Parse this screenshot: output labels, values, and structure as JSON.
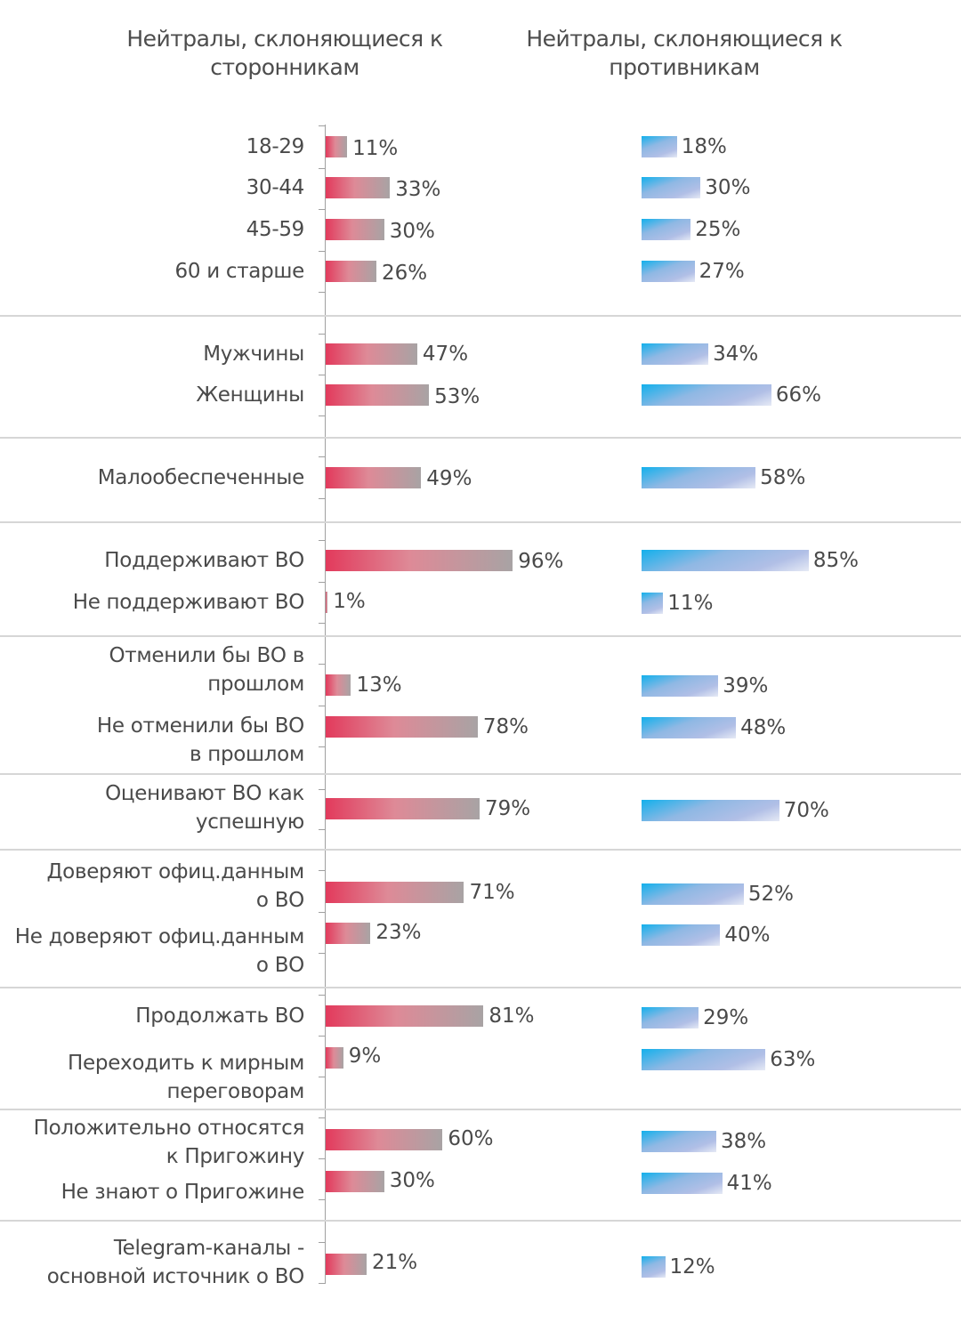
{
  "chart_data": {
    "type": "bar",
    "orientation": "horizontal",
    "series": [
      {
        "name": "Нейтралы, склоняющиеся к сторонникам",
        "color_start": "#e23a5c",
        "color_end": "#a8a3a4"
      },
      {
        "name": "Нейтралы, склоняющиеся к противникам",
        "color_start": "#12b0ec",
        "color_end": "#b1bfe6"
      }
    ],
    "value_unit": "%",
    "xlim": [
      0,
      100
    ],
    "groups": [
      {
        "rows": [
          {
            "label": "18-29",
            "left": 11,
            "right": 18,
            "left_label": "11%",
            "right_label": "18%"
          },
          {
            "label": "30-44",
            "left": 33,
            "right": 30,
            "left_label": "33%",
            "right_label": "30%"
          },
          {
            "label": "45-59",
            "left": 30,
            "right": 25,
            "left_label": "30%",
            "right_label": "25%"
          },
          {
            "label": "60 и старше",
            "left": 26,
            "right": 27,
            "left_label": "26%",
            "right_label": "27%"
          }
        ]
      },
      {
        "rows": [
          {
            "label": "Мужчины",
            "left": 47,
            "right": 34,
            "left_label": "47%",
            "right_label": "34%"
          },
          {
            "label": "Женщины",
            "left": 53,
            "right": 66,
            "left_label": "53%",
            "right_label": "66%"
          }
        ]
      },
      {
        "rows": [
          {
            "label": "Малообеспеченные",
            "left": 49,
            "right": 58,
            "left_label": "49%",
            "right_label": "58%"
          }
        ]
      },
      {
        "rows": [
          {
            "label": "Поддерживают ВО",
            "left": 96,
            "right": 85,
            "left_label": "96%",
            "right_label": "85%"
          },
          {
            "label": "Не поддерживают ВО",
            "left": 1,
            "right": 11,
            "left_label": "1%",
            "right_label": "11%"
          }
        ]
      },
      {
        "rows": [
          {
            "label": "Отменили бы ВО в прошлом",
            "left": 13,
            "right": 39,
            "left_label": "13%",
            "right_label": "39%"
          },
          {
            "label": "Не отменили бы ВО в прошлом",
            "left": 78,
            "right": 48,
            "left_label": "78%",
            "right_label": "48%"
          }
        ]
      },
      {
        "rows": [
          {
            "label": "Оценивают ВО как успешную",
            "left": 79,
            "right": 70,
            "left_label": "79%",
            "right_label": "70%"
          }
        ]
      },
      {
        "rows": [
          {
            "label": "Доверяют офиц.данным о ВО",
            "left": 71,
            "right": 52,
            "left_label": "71%",
            "right_label": "52%"
          },
          {
            "label": "Не доверяют офиц.данным о ВО",
            "left": 23,
            "right": 40,
            "left_label": "23%",
            "right_label": "40%"
          }
        ]
      },
      {
        "rows": [
          {
            "label": "Продолжать ВО",
            "left": 81,
            "right": 29,
            "left_label": "81%",
            "right_label": "29%"
          },
          {
            "label": "Переходить к мирным переговорам",
            "left": 9,
            "right": 63,
            "left_label": "9%",
            "right_label": "63%"
          }
        ]
      },
      {
        "rows": [
          {
            "label": "Положительно относятся к Пригожину",
            "left": 60,
            "right": 38,
            "left_label": "60%",
            "right_label": "38%"
          },
          {
            "label": "Не знают о Пригожине",
            "left": 30,
            "right": 41,
            "left_label": "30%",
            "right_label": "41%"
          }
        ]
      },
      {
        "rows": [
          {
            "label": "Telegram-каналы - основной источник о ВО",
            "left": 21,
            "right": 12,
            "left_label": "21%",
            "right_label": "12%"
          }
        ]
      }
    ]
  },
  "titles": {
    "left_line1": "Нейтралы, склоняющиеся к",
    "left_line2": "сторонникам",
    "right_line1": "Нейтралы, склоняющиеся к",
    "right_line2": "противникам"
  },
  "label_lines": [
    [
      "18-29"
    ],
    [
      "30-44"
    ],
    [
      "45-59"
    ],
    [
      "60 и старше"
    ],
    [
      "Мужчины"
    ],
    [
      "Женщины"
    ],
    [
      "Малообеспеченные"
    ],
    [
      "Поддерживают ВО"
    ],
    [
      "Не поддерживают ВО"
    ],
    [
      "Отменили бы ВО в",
      "прошлом"
    ],
    [
      "Не отменили бы ВО",
      "в прошлом"
    ],
    [
      "Оценивают ВО как",
      "успешную"
    ],
    [
      "Доверяют офиц.данным",
      "о ВО"
    ],
    [
      "Не доверяют офиц.данным",
      "о ВО"
    ],
    [
      "Продолжать ВО"
    ],
    [
      "Переходить к мирным",
      "переговорам"
    ],
    [
      "Положительно относятся",
      "к Пригожину"
    ],
    [
      "Не знают о Пригожине"
    ],
    [
      "Telegram-каналы -",
      "основной источник о ВО"
    ]
  ]
}
